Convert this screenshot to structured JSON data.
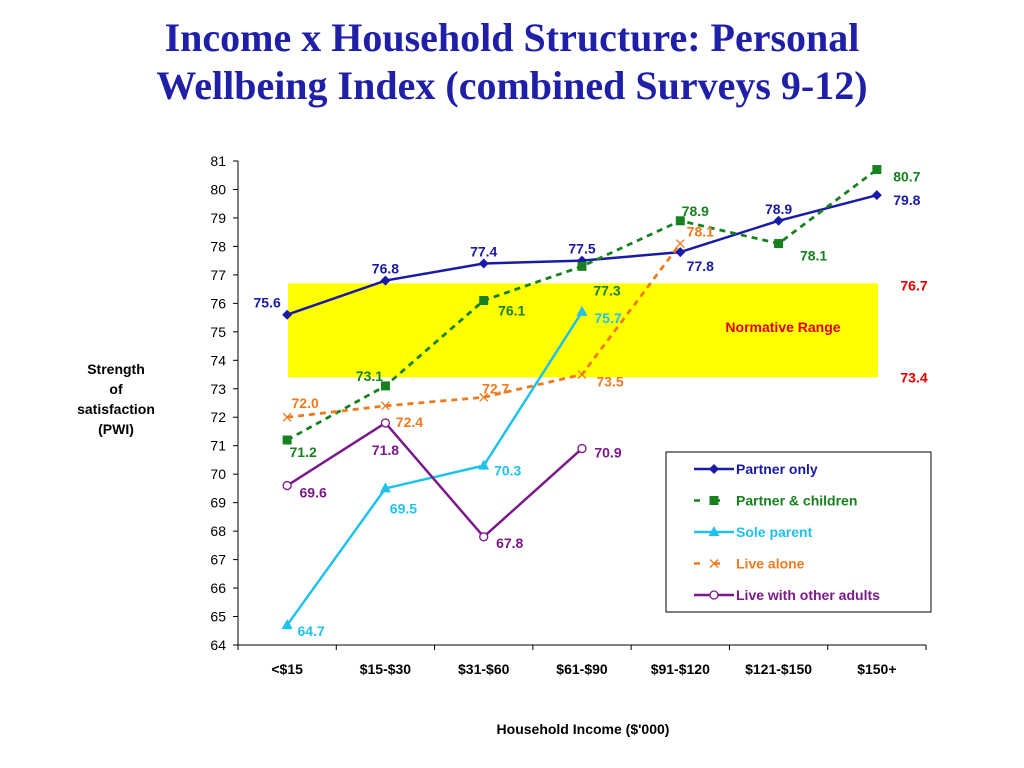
{
  "title_line1": "Income x Household Structure: Personal",
  "title_line2": "Wellbeing Index (combined Surveys 9-12)",
  "chart_data": {
    "type": "line",
    "ylabel_lines": [
      "Strength",
      "of",
      "satisfaction",
      "(PWI)"
    ],
    "xlabel": "Household Income ($'000)",
    "categories": [
      "<$15",
      "$15-$30",
      "$31-$60",
      "$61-$90",
      "$91-$120",
      "$121-$150",
      "$150+"
    ],
    "ylim": [
      64,
      81
    ],
    "yticks": [
      64,
      65,
      66,
      67,
      68,
      69,
      70,
      71,
      72,
      73,
      74,
      75,
      76,
      77,
      78,
      79,
      80,
      81
    ],
    "grid": false,
    "normative_range": {
      "low": 73.4,
      "high": 76.7,
      "label": "Normative Range",
      "low_label": "73.4",
      "high_label": "76.7",
      "color": "#ffff00",
      "text_color": "#e00000"
    },
    "legend_position": "bottom-right",
    "series": [
      {
        "name": "Partner only",
        "color": "#1a1aa8",
        "dash": "solid",
        "marker": "diamond",
        "values": [
          75.6,
          76.8,
          77.4,
          77.5,
          77.8,
          78.9,
          79.8
        ],
        "labels": [
          "75.6",
          "76.8",
          "77.4",
          "77.5",
          "77.8",
          "78.9",
          "79.8"
        ]
      },
      {
        "name": "Partner & children",
        "color": "#17811f",
        "dash": "dashed",
        "marker": "square",
        "values": [
          71.2,
          73.1,
          76.1,
          77.3,
          78.9,
          78.1,
          80.7
        ],
        "labels": [
          "71.2",
          "73.1",
          "76.1",
          "77.3",
          "78.9",
          "78.1",
          "80.7"
        ]
      },
      {
        "name": "Sole parent",
        "color": "#1ec2ec",
        "dash": "solid",
        "marker": "triangle",
        "values": [
          64.7,
          69.5,
          70.3,
          75.7,
          null,
          null,
          null
        ],
        "labels": [
          "64.7",
          "69.5",
          "70.3",
          "75.7",
          null,
          null,
          null
        ]
      },
      {
        "name": "Live alone",
        "color": "#f07a1e",
        "dash": "dashed",
        "marker": "x",
        "values": [
          72.0,
          72.4,
          72.7,
          73.5,
          78.1,
          null,
          null
        ],
        "labels": [
          "72.0",
          "72.4",
          "72.7",
          "73.5",
          "78.1",
          null,
          null
        ]
      },
      {
        "name": "Live with other adults",
        "color": "#7a1a8a",
        "dash": "solid",
        "marker": "circle",
        "values": [
          69.6,
          71.8,
          67.8,
          70.9,
          null,
          null,
          null
        ],
        "labels": [
          "69.6",
          "71.8",
          "67.8",
          "70.9",
          null,
          null,
          null
        ]
      }
    ]
  }
}
